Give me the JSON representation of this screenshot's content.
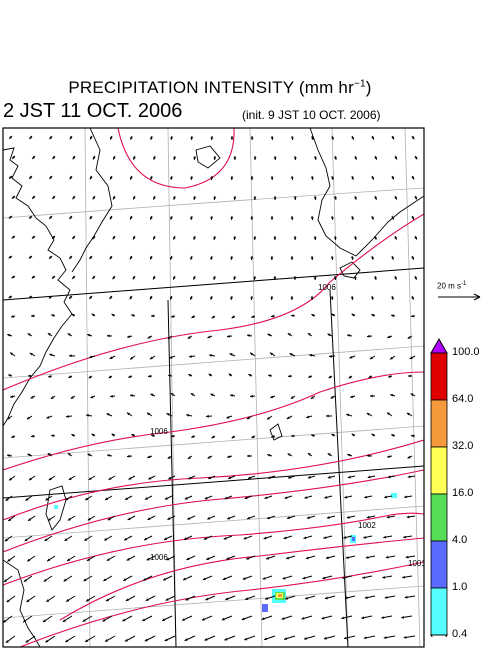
{
  "title": {
    "main": "PRECIPITATION INTENSITY (mm hr",
    "unit_exp": "−1",
    "close": ")"
  },
  "valid_time": "2 JST 11 OCT. 2006",
  "init_time": "(init. 9 JST 10 OCT. 2006)",
  "wind_scale": {
    "label_base": "20 m s",
    "label_exp": "-1"
  },
  "pressure_labels": [
    "1006",
    "1006",
    "1006",
    "1002",
    "1001"
  ],
  "colorbar": {
    "levels": [
      "100.0",
      "64.0",
      "32.0",
      "16.0",
      "4.0",
      "1.0",
      "0.4"
    ],
    "colors": [
      "#e00000",
      "#f49a3a",
      "#ffff55",
      "#55dd55",
      "#5a6cff",
      "#55ffff"
    ],
    "over_color": "#b000ff",
    "under_color": "#ffffff"
  },
  "colors": {
    "isobar": "#e0104a",
    "grid": "#b0b0b0",
    "coast": "#000000",
    "arrow": "#000000"
  }
}
